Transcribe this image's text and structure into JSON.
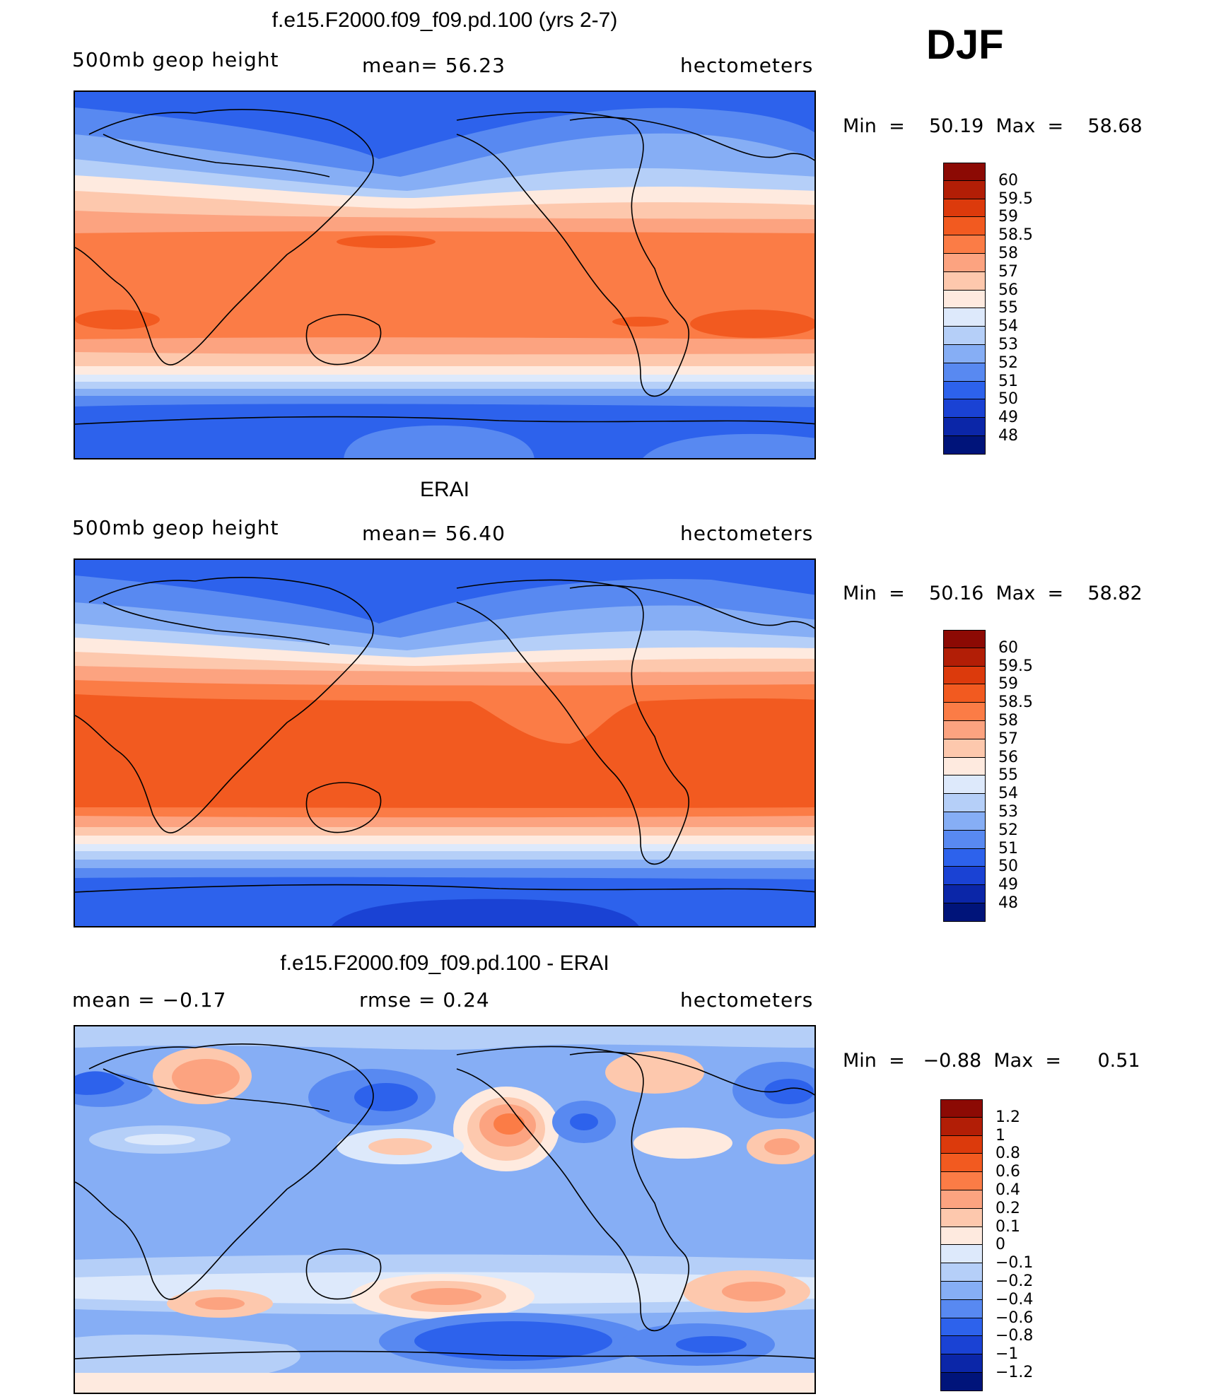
{
  "season": "DJF",
  "panels": [
    {
      "title": "f.e15.F2000.f09_f09.pd.100 (yrs 2-7)",
      "left_label": "500mb  geop  height",
      "center_label": "mean=   56.23",
      "right_label": "hectometers",
      "minmax": "Min  =    50.19  Max  =    58.68",
      "colorbar_labels": [
        "60",
        "59.5",
        "59",
        "58.5",
        "58",
        "57",
        "56",
        "55",
        "54",
        "53",
        "52",
        "51",
        "50",
        "49",
        "48"
      ],
      "colorbar_colors": [
        "#8c0a04",
        "#b21e06",
        "#dc3a0c",
        "#f25a20",
        "#fb7c46",
        "#fca380",
        "#fdc8ad",
        "#feeadf",
        "#dde9fb",
        "#b5cff8",
        "#86aef5",
        "#5889f1",
        "#2d62ec",
        "#1a42d4",
        "#0b26a8",
        "#00147a"
      ]
    },
    {
      "title": "ERAI",
      "left_label": "500mb  geop  height",
      "center_label": "mean=   56.40",
      "right_label": "hectometers",
      "minmax": "Min  =    50.16  Max  =    58.82",
      "colorbar_labels": [
        "60",
        "59.5",
        "59",
        "58.5",
        "58",
        "57",
        "56",
        "55",
        "54",
        "53",
        "52",
        "51",
        "50",
        "49",
        "48"
      ],
      "colorbar_colors": [
        "#8c0a04",
        "#b21e06",
        "#dc3a0c",
        "#f25a20",
        "#fb7c46",
        "#fca380",
        "#fdc8ad",
        "#feeadf",
        "#dde9fb",
        "#b5cff8",
        "#86aef5",
        "#5889f1",
        "#2d62ec",
        "#1a42d4",
        "#0b26a8",
        "#00147a"
      ]
    },
    {
      "title": "f.e15.F2000.f09_f09.pd.100 - ERAI",
      "left_label": "mean  =    −0.17",
      "center_label": "rmse  =     0.24",
      "right_label": "hectometers",
      "minmax": "Min  =   −0.88  Max  =      0.51",
      "colorbar_labels": [
        "1.2",
        "1",
        "0.8",
        "0.6",
        "0.4",
        "0.2",
        "0.1",
        "0",
        "−0.1",
        "−0.2",
        "−0.4",
        "−0.6",
        "−0.8",
        "−1",
        "−1.2"
      ],
      "colorbar_colors": [
        "#8c0a04",
        "#b21e06",
        "#dc3a0c",
        "#f25a20",
        "#fb7c46",
        "#fca380",
        "#fdc8ad",
        "#feeadf",
        "#dde9fb",
        "#b5cff8",
        "#86aef5",
        "#5889f1",
        "#2d62ec",
        "#1a42d4",
        "#0b26a8",
        "#00147a"
      ]
    }
  ]
}
